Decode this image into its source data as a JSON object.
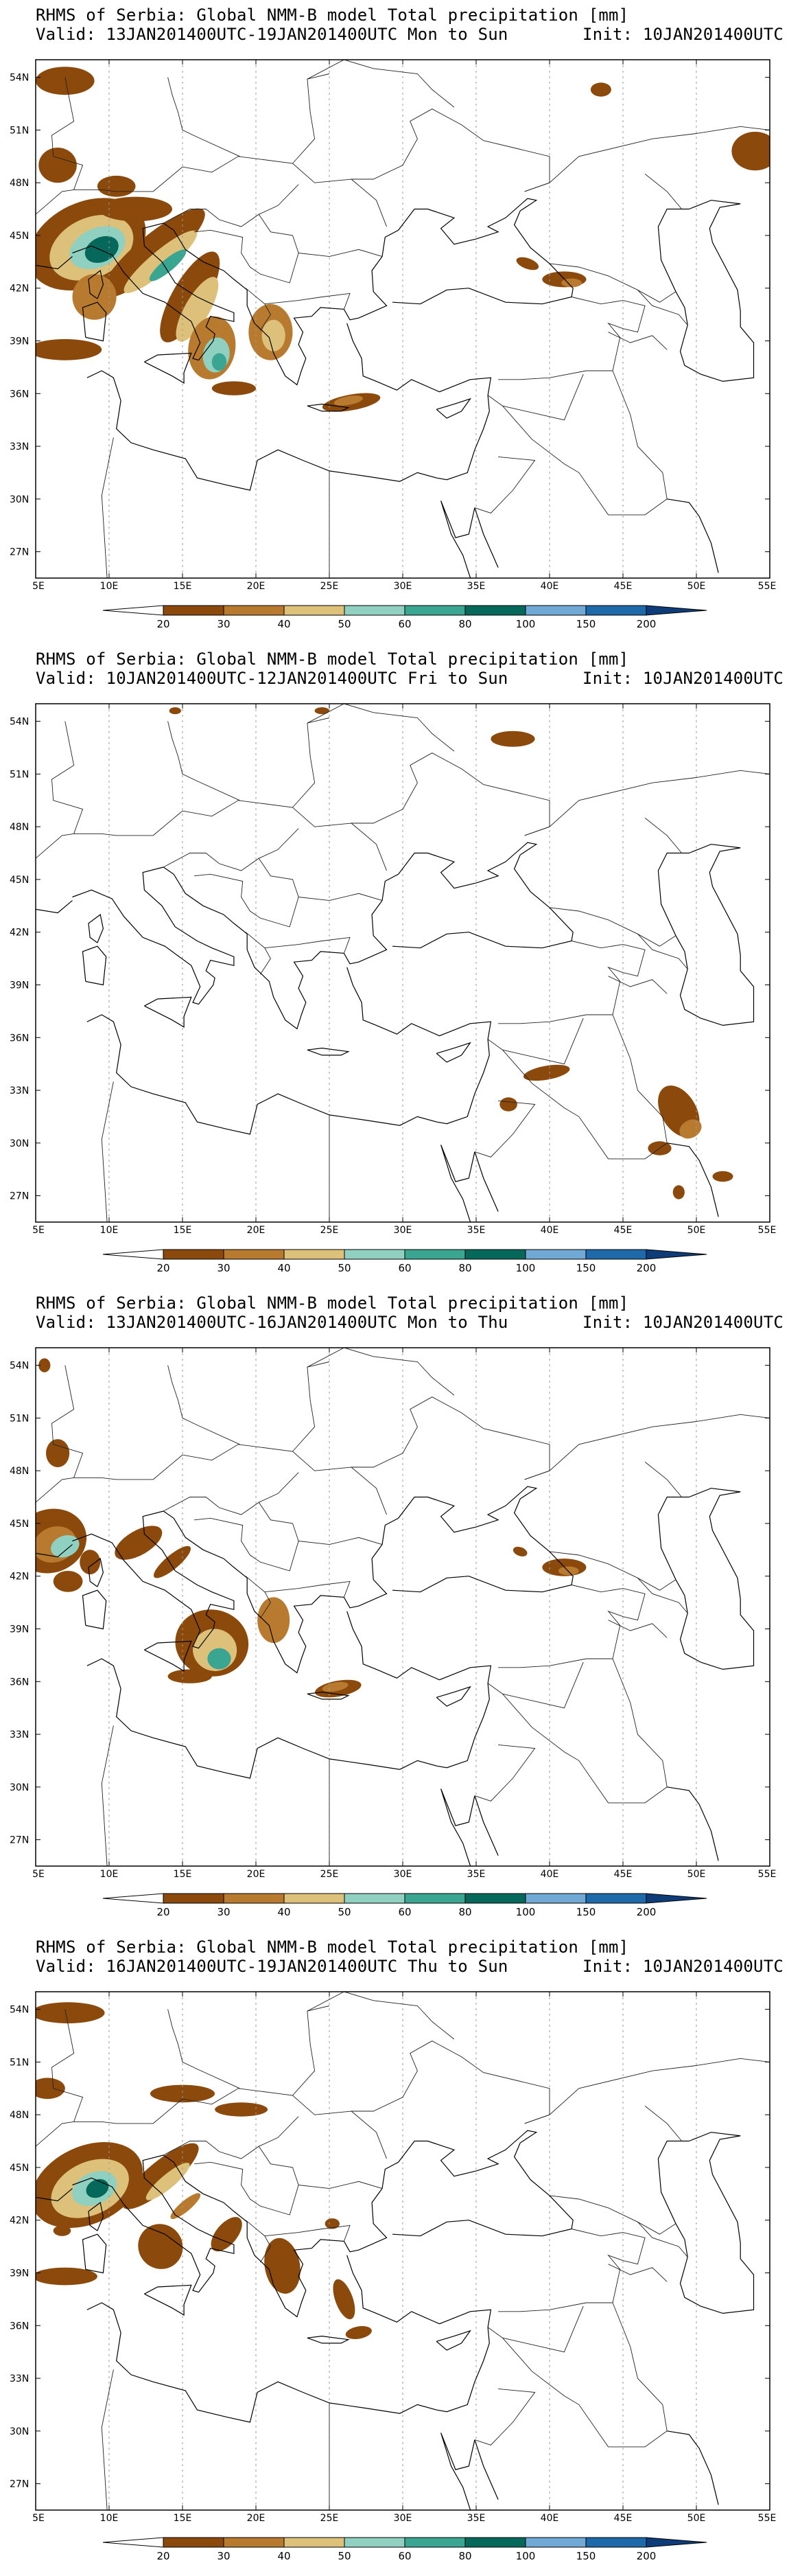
{
  "colorbar": {
    "levels": [
      "20",
      "30",
      "40",
      "50",
      "60",
      "80",
      "100",
      "150",
      "200"
    ],
    "colors": [
      "#8b4a0c",
      "#b87a2f",
      "#ddc17a",
      "#8fd0c0",
      "#3aa591",
      "#06685a",
      "#70a9d6",
      "#1d69a9",
      "#0d3c78"
    ]
  },
  "lon_labels": [
    "5E",
    "10E",
    "15E",
    "20E",
    "25E",
    "30E",
    "35E",
    "40E",
    "45E",
    "50E",
    "55E"
  ],
  "lat_labels": [
    "54N",
    "51N",
    "48N",
    "45N",
    "42N",
    "39N",
    "36N",
    "33N",
    "30N",
    "27N"
  ],
  "panels": [
    {
      "title": "RHMS of Serbia: Global NMM-B model Total precipitation [mm]",
      "valid": "Valid: 13JAN201400UTC-19JAN201400UTC Mon to Sun",
      "init": "Init: 10JAN201400UTC"
    },
    {
      "title": "RHMS of Serbia: Global NMM-B model Total precipitation [mm]",
      "valid": "Valid: 10JAN201400UTC-12JAN201400UTC Fri to Sun",
      "init": "Init: 10JAN201400UTC"
    },
    {
      "title": "RHMS of Serbia: Global NMM-B model Total precipitation [mm]",
      "valid": "Valid: 13JAN201400UTC-16JAN201400UTC Mon to Thu",
      "init": "Init: 10JAN201400UTC"
    },
    {
      "title": "RHMS of Serbia: Global NMM-B model Total precipitation [mm]",
      "valid": "Valid: 16JAN201400UTC-19JAN201400UTC Thu to Sun",
      "init": "Init: 10JAN201400UTC"
    }
  ]
}
